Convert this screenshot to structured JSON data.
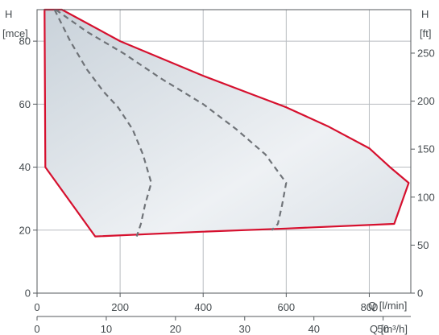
{
  "chart_data": {
    "type": "line",
    "y_left_label": [
      "H",
      "[mce]"
    ],
    "y_right_label": [
      "H",
      "[ft]"
    ],
    "x_label_lmin": "Q [l/min]",
    "x_label_m3h": "Q [m³/h]",
    "xlim_lmin": [
      0,
      900
    ],
    "ylim_m": [
      0,
      90
    ],
    "x_ticks_lmin": [
      0,
      200,
      400,
      600,
      800
    ],
    "x_ticks_m3h": [
      0,
      10,
      20,
      30,
      40,
      50
    ],
    "y_ticks_m": [
      0,
      20,
      40,
      60,
      80
    ],
    "y_ticks_ft": [
      0,
      50,
      100,
      150,
      200,
      250
    ],
    "grid": true,
    "colors": {
      "envelope": "#d6102e",
      "curves": "#6f7378",
      "fill": "#cfd6dd"
    },
    "envelope": [
      {
        "q": 18,
        "h": 90
      },
      {
        "q": 60,
        "h": 90
      },
      {
        "q": 200,
        "h": 80
      },
      {
        "q": 400,
        "h": 69
      },
      {
        "q": 520,
        "h": 63
      },
      {
        "q": 600,
        "h": 59
      },
      {
        "q": 700,
        "h": 53
      },
      {
        "q": 800,
        "h": 46
      },
      {
        "q": 850,
        "h": 40
      },
      {
        "q": 895,
        "h": 35
      },
      {
        "q": 860,
        "h": 22
      },
      {
        "q": 600,
        "h": 20.5
      },
      {
        "q": 400,
        "h": 19.5
      },
      {
        "q": 140,
        "h": 18
      },
      {
        "q": 20,
        "h": 40
      },
      {
        "q": 18,
        "h": 90
      }
    ],
    "series": [
      {
        "points": [
          {
            "q": 42,
            "h": 90
          },
          {
            "q": 80,
            "h": 80
          },
          {
            "q": 120,
            "h": 71
          },
          {
            "q": 160,
            "h": 64
          },
          {
            "q": 195,
            "h": 59
          },
          {
            "q": 230,
            "h": 52
          },
          {
            "q": 255,
            "h": 44
          },
          {
            "q": 275,
            "h": 35
          },
          {
            "q": 260,
            "h": 28
          },
          {
            "q": 250,
            "h": 22
          },
          {
            "q": 240,
            "h": 18
          }
        ]
      },
      {
        "points": [
          {
            "q": 45,
            "h": 90
          },
          {
            "q": 120,
            "h": 83
          },
          {
            "q": 210,
            "h": 76
          },
          {
            "q": 300,
            "h": 68
          },
          {
            "q": 400,
            "h": 60
          },
          {
            "q": 480,
            "h": 52
          },
          {
            "q": 550,
            "h": 44
          },
          {
            "q": 600,
            "h": 35
          },
          {
            "q": 590,
            "h": 28
          },
          {
            "q": 580,
            "h": 22
          },
          {
            "q": 565,
            "h": 20
          }
        ]
      }
    ]
  }
}
